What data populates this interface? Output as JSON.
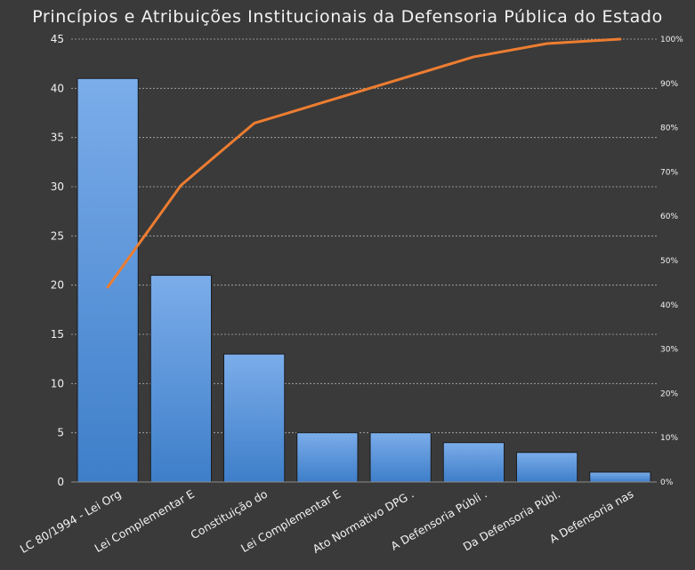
{
  "chart_data": {
    "type": "bar",
    "title": "Princípios e Atribuições Institucionais da Defensoria Pública do Estado",
    "categories": [
      "LC 80/1994 - Lei Org",
      "Lei Complementar E",
      "Constituição do",
      "Lei Complementar  E",
      "Ato Normativo DPG .",
      "A Defensoria Públi .",
      "Da Defensoria Públ.",
      "A Defensoria nas"
    ],
    "series": [
      {
        "type": "bar",
        "values": [
          41,
          21,
          13,
          5,
          5,
          4,
          3,
          1
        ]
      },
      {
        "type": "line",
        "axis": "secondary",
        "values": [
          0.44,
          0.67,
          0.81,
          0.86,
          0.91,
          0.96,
          0.99,
          1.0
        ]
      }
    ],
    "ylim": [
      0,
      45
    ],
    "yticks": [
      "0",
      "5",
      "10",
      "15",
      "20",
      "25",
      "30",
      "35",
      "40",
      "45"
    ],
    "y2lim": [
      0,
      1
    ],
    "y2ticks": [
      "0%",
      "10%",
      "20%",
      "30%",
      "40%",
      "50%",
      "60%",
      "70%",
      "80%",
      "90%",
      "100%"
    ],
    "grid": true,
    "colors": {
      "background": "#3a3a3a",
      "bar_top": "#7badea",
      "bar_bottom": "#3e7ec9",
      "bar_border": "#1c1c1c",
      "line": "#ed7d31",
      "grid": "#b0b0b0",
      "text": "#f2f2f2"
    }
  }
}
